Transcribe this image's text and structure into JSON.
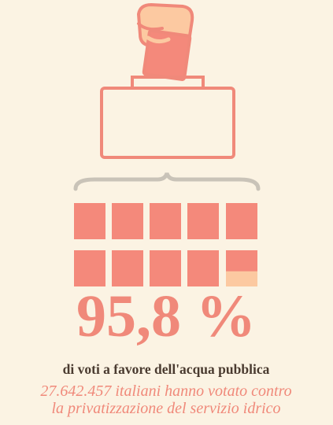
{
  "headline": {
    "value": 95.8,
    "label": "95,8 %"
  },
  "subtitle": "di voti a favore dell'acqua pubblica",
  "note_lines": [
    "27.642.457 italiani hanno votato contro",
    "la privatizzazione del servizio idrico"
  ]
}
